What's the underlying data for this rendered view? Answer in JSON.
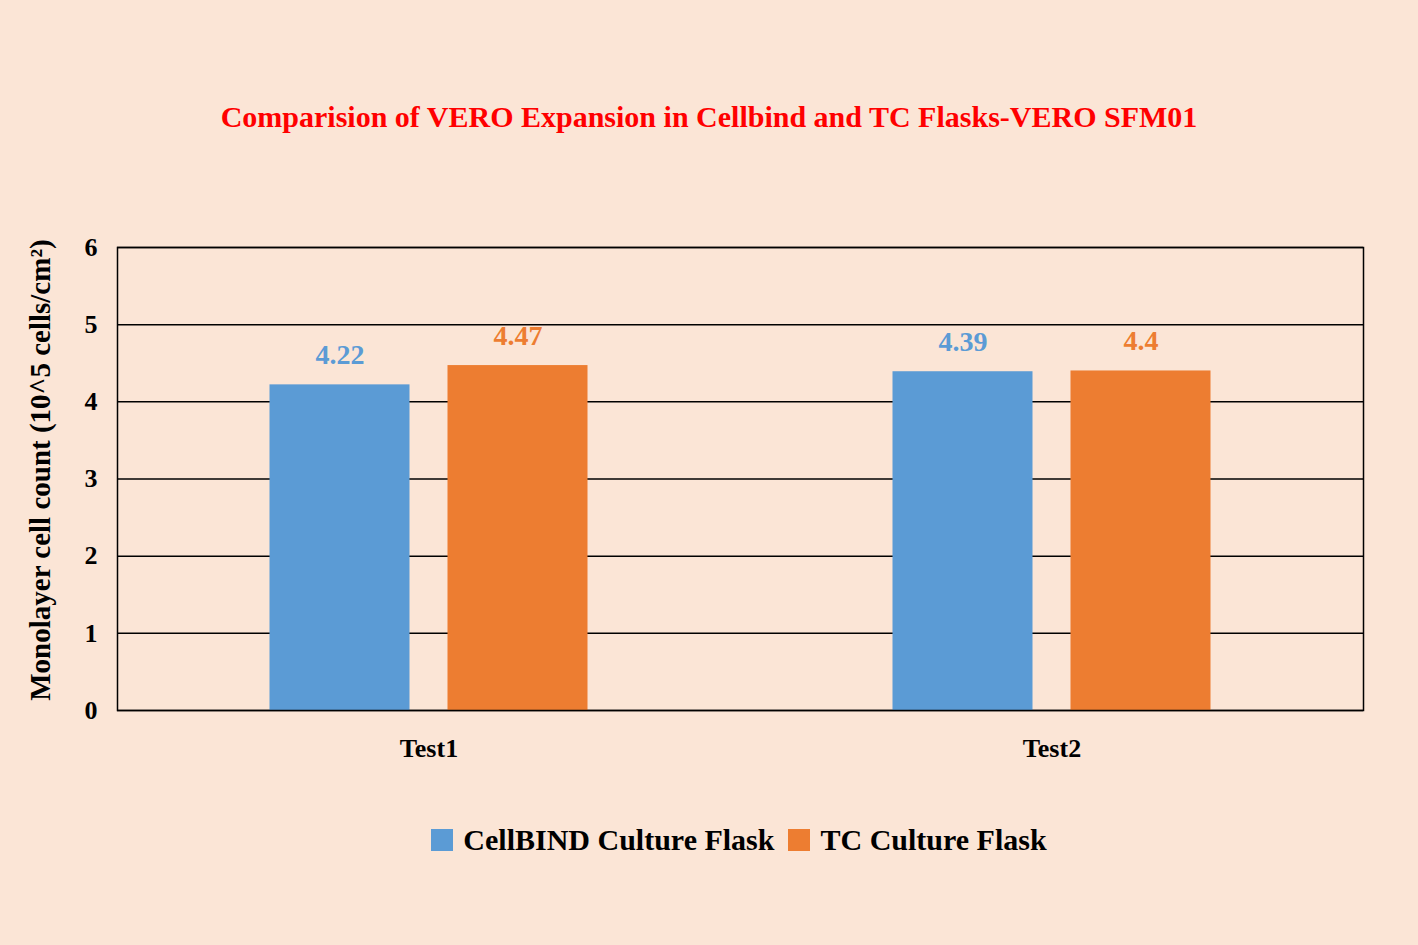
{
  "chart_data": {
    "type": "bar",
    "title": "Comparision of VERO Expansion in Cellbind and TC Flasks-VERO SFM01",
    "y_label": "Monolayer cell count (10^5 cells/cm²)",
    "categories": [
      "Test1",
      "Test2"
    ],
    "series": [
      {
        "name": "CellBIND Culture Flask",
        "color": "#5b9bd5",
        "values": [
          4.22,
          4.39
        ]
      },
      {
        "name": "TC Culture Flask",
        "color": "#ed7d31",
        "values": [
          4.47,
          4.4
        ]
      }
    ],
    "ylim": [
      0,
      6
    ],
    "yticks": [
      0,
      1,
      2,
      3,
      4,
      5,
      6
    ],
    "grid": true,
    "legend": "bottom",
    "data_labels": true
  }
}
